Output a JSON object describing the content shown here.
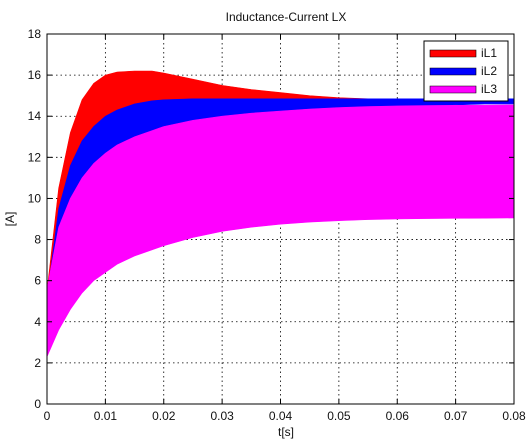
{
  "chart_data": {
    "type": "area",
    "title": "Inductance-Current LX",
    "xlabel": "t[s]",
    "ylabel": "[A]",
    "xlim": [
      0,
      0.08
    ],
    "ylim": [
      0,
      18
    ],
    "xticks": [
      0,
      0.01,
      0.02,
      0.03,
      0.04,
      0.05,
      0.06,
      0.07,
      0.08
    ],
    "xtick_labels": [
      "0",
      "0.01",
      "0.02",
      "0.03",
      "0.04",
      "0.05",
      "0.06",
      "0.07",
      "0.08"
    ],
    "yticks": [
      0,
      2,
      4,
      6,
      8,
      10,
      12,
      14,
      16,
      18
    ],
    "ytick_labels": [
      "0",
      "2",
      "4",
      "6",
      "8",
      "10",
      "12",
      "14",
      "16",
      "18"
    ],
    "grid": true,
    "legend_position": "top-right",
    "series": [
      {
        "name": "iL1",
        "color": "#ff0000",
        "x": [
          0,
          0.002,
          0.004,
          0.006,
          0.008,
          0.01,
          0.012,
          0.015,
          0.018,
          0.02,
          0.025,
          0.03,
          0.035,
          0.04,
          0.045,
          0.05,
          0.055,
          0.06,
          0.065,
          0.07,
          0.075,
          0.08
        ],
        "upper": [
          5.5,
          10.5,
          13.2,
          14.8,
          15.6,
          16.0,
          16.15,
          16.2,
          16.2,
          16.1,
          15.8,
          15.5,
          15.3,
          15.15,
          15.0,
          14.9,
          14.85,
          14.82,
          14.8,
          14.78,
          14.76,
          14.75
        ],
        "lower": [
          5.0,
          7.8,
          9.8,
          11.1,
          12.1,
          12.8,
          13.3,
          13.8,
          14.1,
          14.3,
          14.5,
          14.6,
          14.65,
          14.68,
          14.7,
          14.7,
          14.7,
          14.7,
          14.7,
          14.7,
          14.7,
          14.7
        ]
      },
      {
        "name": "iL2",
        "color": "#0000ff",
        "x": [
          0,
          0.002,
          0.004,
          0.006,
          0.008,
          0.01,
          0.012,
          0.015,
          0.018,
          0.02,
          0.025,
          0.03,
          0.035,
          0.04,
          0.045,
          0.05,
          0.055,
          0.06,
          0.065,
          0.07,
          0.075,
          0.08
        ],
        "upper": [
          5.2,
          9.5,
          11.6,
          12.8,
          13.5,
          14.0,
          14.3,
          14.6,
          14.75,
          14.8,
          14.85,
          14.85,
          14.85,
          14.85,
          14.85,
          14.85,
          14.85,
          14.85,
          14.85,
          14.85,
          14.85,
          14.85
        ],
        "lower": [
          5.0,
          7.3,
          8.9,
          10.0,
          10.8,
          11.4,
          11.9,
          12.4,
          12.8,
          13.0,
          13.4,
          13.7,
          13.9,
          14.05,
          14.2,
          14.3,
          14.4,
          14.45,
          14.5,
          14.55,
          14.6,
          14.6
        ]
      },
      {
        "name": "iL3",
        "color": "#ff00ff",
        "x": [
          0,
          0.002,
          0.004,
          0.006,
          0.008,
          0.01,
          0.012,
          0.015,
          0.018,
          0.02,
          0.025,
          0.03,
          0.035,
          0.04,
          0.045,
          0.05,
          0.055,
          0.06,
          0.065,
          0.07,
          0.075,
          0.08
        ],
        "upper": [
          5.6,
          8.6,
          10.0,
          11.0,
          11.7,
          12.2,
          12.6,
          13.0,
          13.3,
          13.5,
          13.8,
          14.0,
          14.15,
          14.25,
          14.35,
          14.42,
          14.47,
          14.5,
          14.52,
          14.53,
          14.54,
          14.55
        ],
        "lower": [
          2.3,
          3.6,
          4.6,
          5.4,
          6.0,
          6.4,
          6.8,
          7.2,
          7.5,
          7.7,
          8.1,
          8.4,
          8.6,
          8.75,
          8.85,
          8.92,
          8.97,
          9.0,
          9.02,
          9.03,
          9.04,
          9.05
        ]
      }
    ]
  }
}
